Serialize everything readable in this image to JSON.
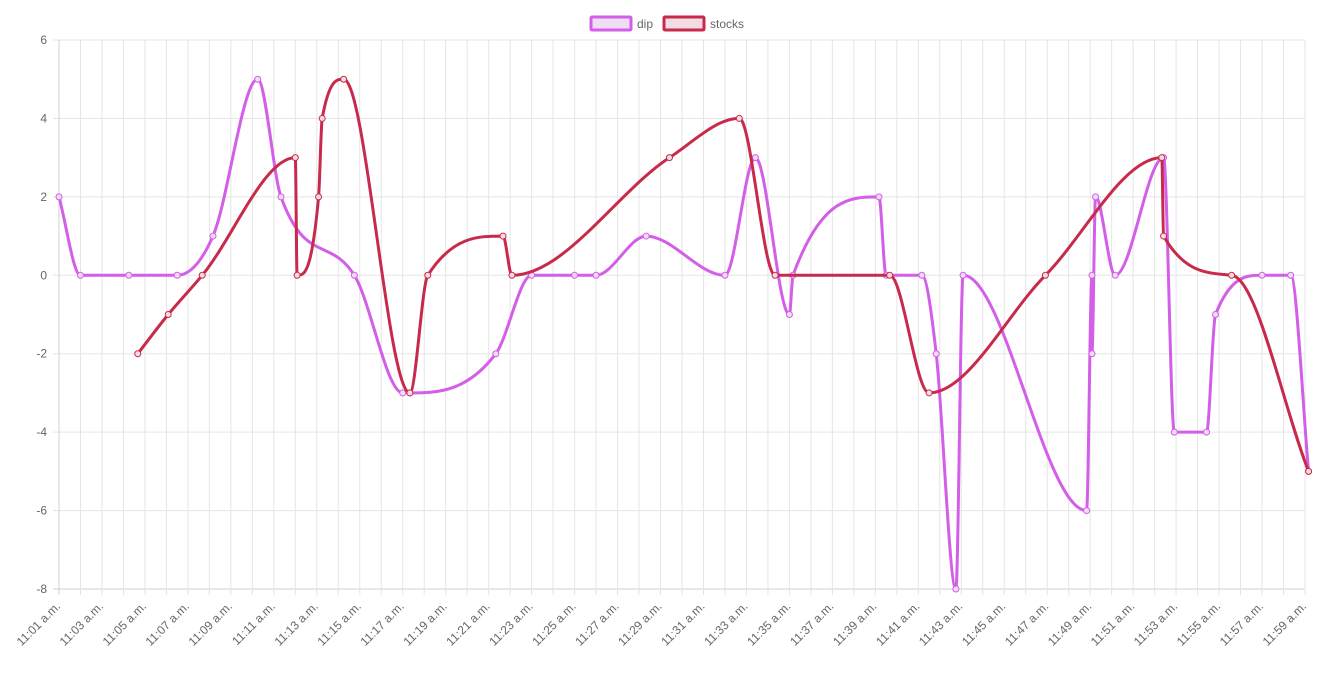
{
  "chart_data": {
    "type": "line",
    "title": "",
    "xlabel": "",
    "ylabel": "",
    "ylim": [
      -8,
      6
    ],
    "y_ticks": [
      6,
      4,
      2,
      0,
      -2,
      -4,
      -6,
      -8
    ],
    "x_range_minutes": [
      "11:01",
      "11:59"
    ],
    "x_tick_labels": [
      "11:01 a.m.",
      "11:03 a.m.",
      "11:05 a.m.",
      "11:07 a.m.",
      "11:09 a.m.",
      "11:11 a.m.",
      "11:13 a.m.",
      "11:15 a.m.",
      "11:17 a.m.",
      "11:19 a.m.",
      "11:21 a.m.",
      "11:23 a.m.",
      "11:25 a.m.",
      "11:27 a.m.",
      "11:29 a.m.",
      "11:31 a.m.",
      "11:33 a.m.",
      "11:35 a.m.",
      "11:37 a.m.",
      "11:39 a.m.",
      "11:41 a.m.",
      "11:43 a.m.",
      "11:45 a.m.",
      "11:47 a.m.",
      "11:49 a.m.",
      "11:51 a.m.",
      "11:53 a.m.",
      "11:55 a.m.",
      "11:57 a.m.",
      "11:59 a.m."
    ],
    "grid": true,
    "legend_position": "top",
    "series": [
      {
        "name": "dip",
        "color": "#d35ee8",
        "fill": "#f0dcf5",
        "points": [
          {
            "x": "11:01:00",
            "y": 2
          },
          {
            "x": "11:02:00",
            "y": 0
          },
          {
            "x": "11:04:15",
            "y": 0
          },
          {
            "x": "11:06:30",
            "y": 0
          },
          {
            "x": "11:08:10",
            "y": 1
          },
          {
            "x": "11:10:15",
            "y": 5
          },
          {
            "x": "11:11:20",
            "y": 2
          },
          {
            "x": "11:14:45",
            "y": 0
          },
          {
            "x": "11:17:00",
            "y": -3
          },
          {
            "x": "11:17:20",
            "y": -3
          },
          {
            "x": "11:21:20",
            "y": -2
          },
          {
            "x": "11:23:00",
            "y": 0
          },
          {
            "x": "11:25:00",
            "y": 0
          },
          {
            "x": "11:26:00",
            "y": 0
          },
          {
            "x": "11:28:20",
            "y": 1
          },
          {
            "x": "11:32:00",
            "y": 0
          },
          {
            "x": "11:33:25",
            "y": 3
          },
          {
            "x": "11:35:00",
            "y": -1
          },
          {
            "x": "11:35:10",
            "y": 0
          },
          {
            "x": "11:39:10",
            "y": 2
          },
          {
            "x": "11:39:30",
            "y": 0
          },
          {
            "x": "11:41:10",
            "y": 0
          },
          {
            "x": "11:41:50",
            "y": -2
          },
          {
            "x": "11:42:45",
            "y": -8
          },
          {
            "x": "11:43:05",
            "y": 0
          },
          {
            "x": "11:48:50",
            "y": -6
          },
          {
            "x": "11:49:05",
            "y": 0
          },
          {
            "x": "11:49:05",
            "y": -2
          },
          {
            "x": "11:49:15",
            "y": 2
          },
          {
            "x": "11:50:10",
            "y": 0
          },
          {
            "x": "11:52:25",
            "y": 3
          },
          {
            "x": "11:52:55",
            "y": -4
          },
          {
            "x": "11:54:25",
            "y": -4
          },
          {
            "x": "11:54:50",
            "y": -1
          },
          {
            "x": "11:57:00",
            "y": 0
          },
          {
            "x": "11:58:20",
            "y": 0
          },
          {
            "x": "11:59:10",
            "y": -5
          }
        ]
      },
      {
        "name": "stocks",
        "color": "#c72a4a",
        "fill": "#f3dde2",
        "points": [
          {
            "x": "11:04:40",
            "y": -2
          },
          {
            "x": "11:06:05",
            "y": -1
          },
          {
            "x": "11:07:40",
            "y": 0
          },
          {
            "x": "11:12:00",
            "y": 3
          },
          {
            "x": "11:12:05",
            "y": 0
          },
          {
            "x": "11:13:05",
            "y": 2
          },
          {
            "x": "11:13:15",
            "y": 4
          },
          {
            "x": "11:14:15",
            "y": 5
          },
          {
            "x": "11:17:20",
            "y": -3
          },
          {
            "x": "11:18:10",
            "y": 0
          },
          {
            "x": "11:21:40",
            "y": 1
          },
          {
            "x": "11:22:05",
            "y": 0
          },
          {
            "x": "11:29:25",
            "y": 3
          },
          {
            "x": "11:32:40",
            "y": 4
          },
          {
            "x": "11:34:20",
            "y": 0
          },
          {
            "x": "11:39:40",
            "y": 0
          },
          {
            "x": "11:41:30",
            "y": -3
          },
          {
            "x": "11:46:55",
            "y": 0
          },
          {
            "x": "11:52:20",
            "y": 3
          },
          {
            "x": "11:52:25",
            "y": 1
          },
          {
            "x": "11:55:35",
            "y": 0
          },
          {
            "x": "11:59:10",
            "y": -5
          }
        ]
      }
    ]
  }
}
